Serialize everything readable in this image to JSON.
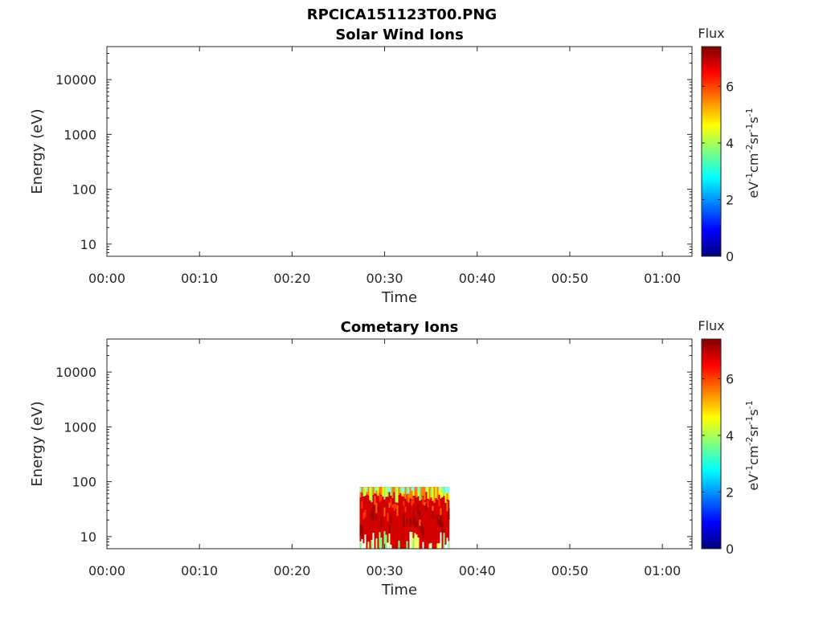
{
  "title": "RPCICA151123T00.PNG",
  "colorscale": [
    "#00007f",
    "#0000ff",
    "#007fff",
    "#00ffff",
    "#7fff7f",
    "#ffff00",
    "#ff7f00",
    "#ff0000",
    "#7f0000"
  ],
  "chart_data": [
    {
      "type": "heatmap",
      "title": "Solar Wind Ions",
      "xlabel": "Time",
      "ylabel": "Energy (eV)",
      "x_ticks": [
        "00:00",
        "00:10",
        "00:20",
        "00:30",
        "00:40",
        "00:50",
        "01:00"
      ],
      "x_range_minutes": [
        0,
        63.2
      ],
      "y_scale": "log",
      "y_ticks": [
        "10",
        "100",
        "1000",
        "10000"
      ],
      "y_range": [
        6,
        40000
      ],
      "colorbar": {
        "label_top": "Flux",
        "unit_text": "eV",
        "ticks": [
          "0",
          "2",
          "4",
          "6"
        ],
        "range": [
          0,
          7.4
        ]
      },
      "data_regions": []
    },
    {
      "type": "heatmap",
      "title": "Cometary Ions",
      "xlabel": "Time",
      "ylabel": "Energy (eV)",
      "x_ticks": [
        "00:00",
        "00:10",
        "00:20",
        "00:30",
        "00:40",
        "00:50",
        "01:00"
      ],
      "x_range_minutes": [
        0,
        63.2
      ],
      "y_scale": "log",
      "y_ticks": [
        "10",
        "100",
        "1000",
        "10000"
      ],
      "y_range": [
        6,
        40000
      ],
      "colorbar": {
        "label_top": "Flux",
        "unit_text": "eV",
        "ticks": [
          "0",
          "2",
          "4",
          "6"
        ],
        "range": [
          0,
          7.4
        ]
      },
      "data_regions": [
        {
          "x_start_minutes": 27.3,
          "x_end_minutes": 37.0,
          "energy_min": 6,
          "energy_max": 80,
          "flux_typical": 6.8
        }
      ]
    }
  ]
}
